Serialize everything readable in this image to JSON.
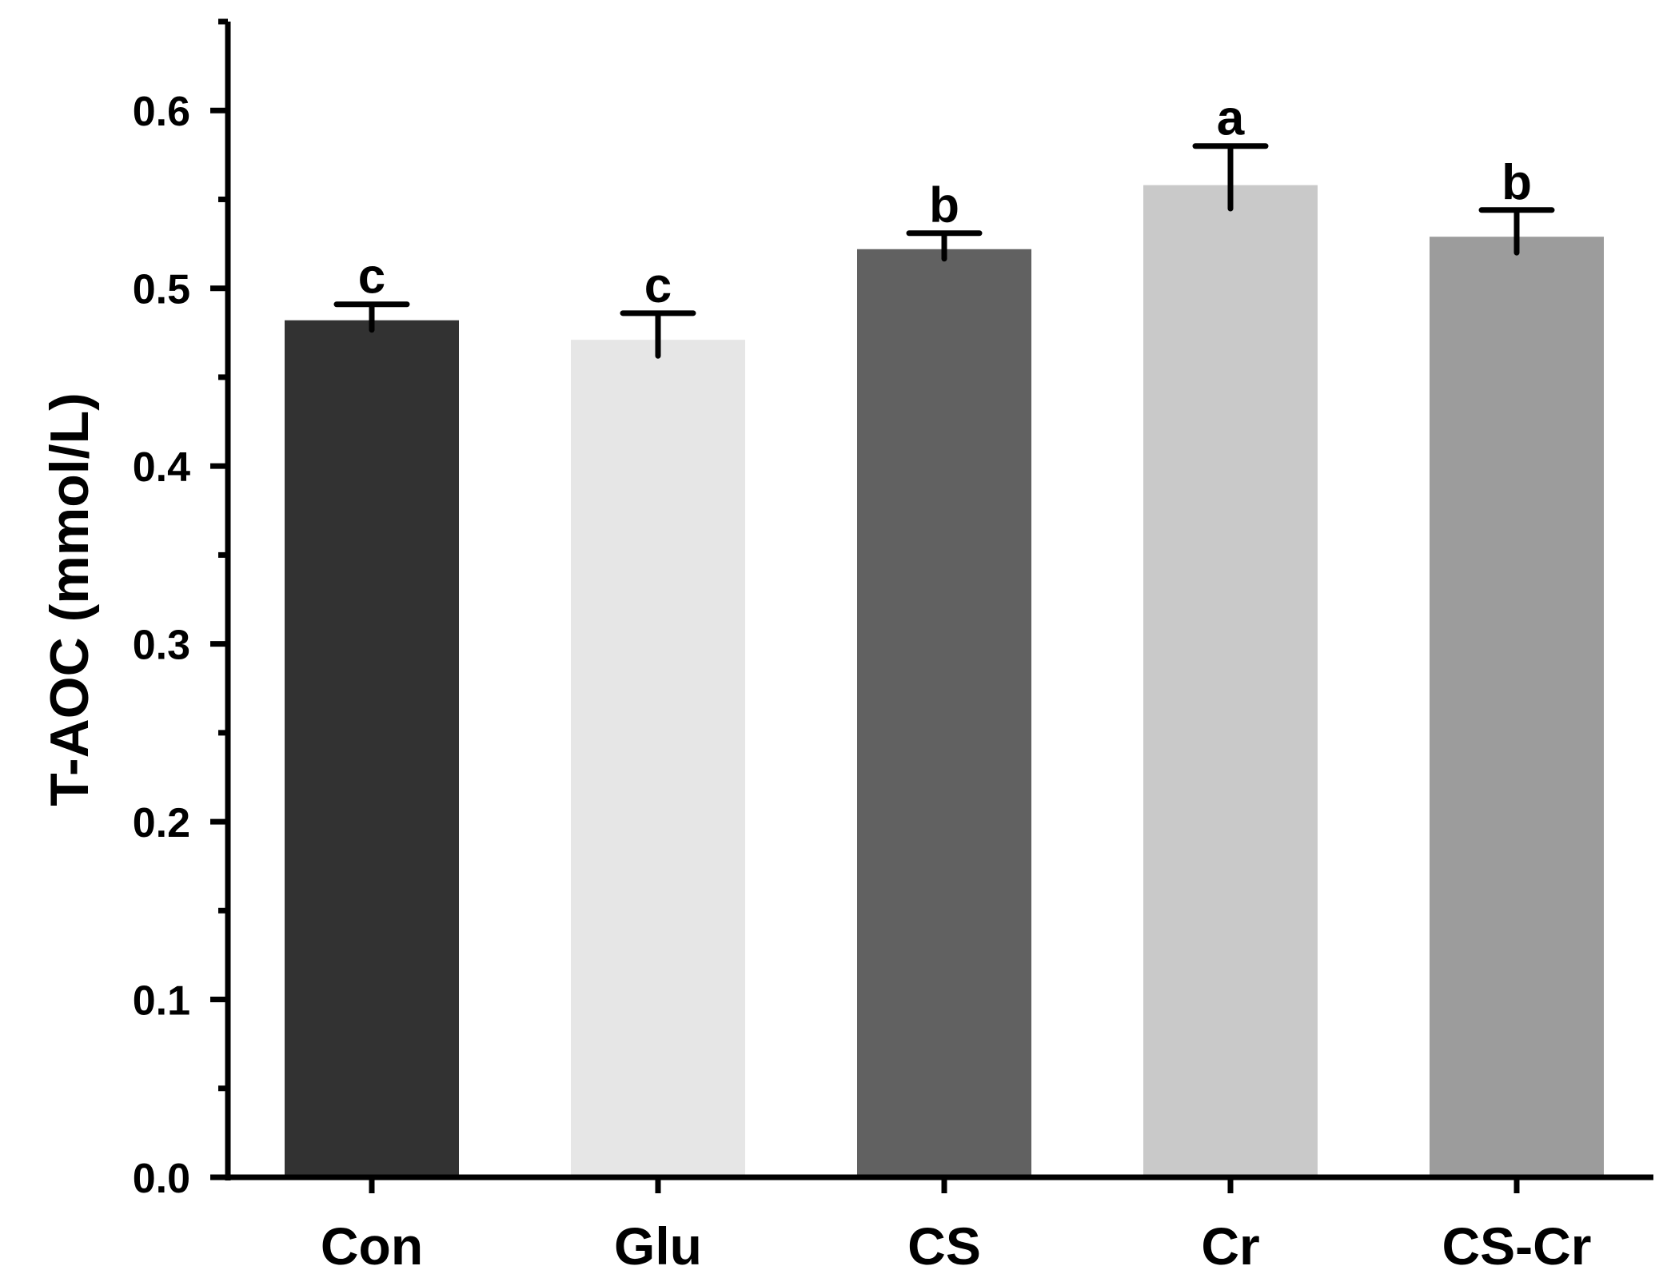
{
  "chart_data": {
    "type": "bar",
    "title": "",
    "xlabel": "",
    "ylabel": "T-AOC (mmol/L)",
    "ylim": [
      0,
      0.65
    ],
    "y_major_ticks": [
      0.0,
      0.1,
      0.2,
      0.3,
      0.4,
      0.5,
      0.6
    ],
    "y_tick_labels": [
      "0.0",
      "0.1",
      "0.2",
      "0.3",
      "0.4",
      "0.5",
      "0.6"
    ],
    "y_minor_ticks": [
      0.05,
      0.15,
      0.25,
      0.35,
      0.45,
      0.55,
      0.65
    ],
    "grid": false,
    "legend": "none",
    "categories": [
      "Con",
      "Glu",
      "CS",
      "Cr",
      "CS-Cr"
    ],
    "values": [
      0.482,
      0.471,
      0.522,
      0.558,
      0.529
    ],
    "errors": [
      0.009,
      0.015,
      0.009,
      0.022,
      0.015
    ],
    "significance": [
      "c",
      "c",
      "b",
      "a",
      "b"
    ],
    "colors": [
      "#323232",
      "#e6e6e6",
      "#616161",
      "#c9c9c9",
      "#9c9c9c"
    ]
  }
}
